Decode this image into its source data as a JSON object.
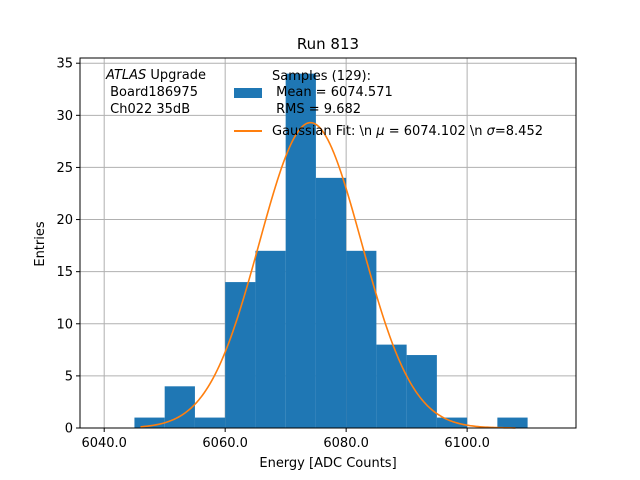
{
  "chart_data": {
    "type": "bar",
    "title": "Run 813",
    "xlabel": "Energy [ADC Counts]",
    "ylabel": "Entries",
    "xlim": [
      6036.0,
      6118.0
    ],
    "ylim": [
      0,
      35.5
    ],
    "xticks": [
      6040.0,
      6060.0,
      6080.0,
      6100.0
    ],
    "xtick_labels": [
      "6040.0",
      "6060.0",
      "6080.0",
      "6100.0"
    ],
    "yticks": [
      0,
      5,
      10,
      15,
      20,
      25,
      30,
      35
    ],
    "ytick_labels": [
      "0",
      "5",
      "10",
      "15",
      "20",
      "25",
      "30",
      "35"
    ],
    "grid": true,
    "legend_position": "top-right",
    "bin_edges": [
      6045,
      6050,
      6055,
      6060,
      6065,
      6070,
      6075,
      6080,
      6085,
      6090,
      6095,
      6100,
      6105,
      6110
    ],
    "counts": [
      1,
      4,
      1,
      14,
      17,
      34,
      24,
      17,
      8,
      7,
      1,
      0,
      1
    ],
    "bar_color": "#1f77b4",
    "fit": {
      "mu": 6074.102,
      "sigma": 8.452,
      "amplitude": 29.3,
      "x_range": [
        6046.0,
        6108.0
      ],
      "color": "#ff7f0e"
    },
    "annotation": {
      "atlas": "ATLAS",
      "upgrade": " Upgrade",
      "board": " Board186975",
      "channel": " Ch022 35dB"
    },
    "legend": {
      "samples": "Samples (129):",
      "mean": " Mean = 6074.571",
      "rms": " RMS = 9.682",
      "fit": "Gaussian Fit: \\n $\\mu$ = 6074.102 \\n $\\sigma$=8.452",
      "fit_prefix": "Gaussian Fit: \\n ",
      "fit_mu_symbol": "μ",
      "fit_mu_value": " = 6074.102 \\n ",
      "fit_sigma_symbol": "σ",
      "fit_sigma_value": "=8.452"
    }
  }
}
